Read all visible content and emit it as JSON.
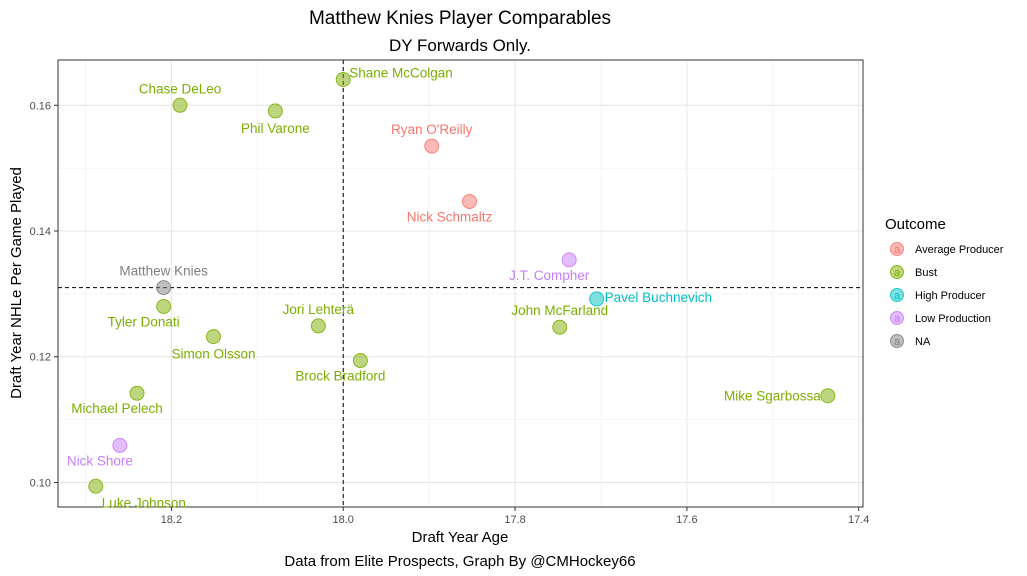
{
  "chart_data": {
    "type": "scatter",
    "title": "Matthew Knies Player Comparables",
    "subtitle": "DY Forwards Only.",
    "xlabel": "Draft Year Age",
    "ylabel": "Draft Year NHLe Per Game Played",
    "caption": "Data from Elite Prospects, Graph By @CMHockey66",
    "x_reversed": true,
    "xlim": [
      18.332,
      17.395
    ],
    "ylim": [
      0.0961,
      0.1672
    ],
    "x_ticks": [
      {
        "value": 18.2,
        "label": "18.2"
      },
      {
        "value": 18.0,
        "label": "18.0"
      },
      {
        "value": 17.8,
        "label": "17.8"
      },
      {
        "value": 17.6,
        "label": "17.6"
      },
      {
        "value": 17.4,
        "label": "17.4"
      }
    ],
    "y_ticks": [
      {
        "value": 0.1,
        "label": "0.10"
      },
      {
        "value": 0.12,
        "label": "0.12"
      },
      {
        "value": 0.14,
        "label": "0.14"
      },
      {
        "value": 0.16,
        "label": "0.16"
      }
    ],
    "vline": 18.0,
    "hline": 0.131,
    "grid": true,
    "legend": {
      "title": "Outcome",
      "position": "right",
      "glyph": "a",
      "entries": [
        {
          "name": "Average Producer",
          "color": "#F8766D"
        },
        {
          "name": "Bust",
          "color": "#7CAE00"
        },
        {
          "name": "High Producer",
          "color": "#00BFC4"
        },
        {
          "name": "Low Production",
          "color": "#C77CFF"
        },
        {
          "name": "NA",
          "color": "#7F7F7F"
        }
      ]
    },
    "points": [
      {
        "name": "Shane McColgan",
        "x": 18.0,
        "y": 0.1641,
        "outcome": "Bust",
        "label_pos": "right-up"
      },
      {
        "name": "Chase DeLeo",
        "x": 18.19,
        "y": 0.16,
        "outcome": "Bust",
        "label_pos": "above"
      },
      {
        "name": "Phil Varone",
        "x": 18.079,
        "y": 0.1591,
        "outcome": "Bust",
        "label_pos": "below"
      },
      {
        "name": "Ryan O'Reilly",
        "x": 17.897,
        "y": 0.1535,
        "outcome": "Average Producer",
        "label_pos": "above"
      },
      {
        "name": "Nick Schmaltz",
        "x": 17.853,
        "y": 0.1447,
        "outcome": "Average Producer",
        "label_pos": "below-left"
      },
      {
        "name": "J.T. Compher",
        "x": 17.737,
        "y": 0.1354,
        "outcome": "Low Production",
        "label_pos": "below-left"
      },
      {
        "name": "Matthew Knies",
        "x": 18.209,
        "y": 0.131,
        "outcome": "NA",
        "label_pos": "above"
      },
      {
        "name": "Pavel Buchnevich",
        "x": 17.705,
        "y": 0.1292,
        "outcome": "High Producer",
        "label_pos": "right"
      },
      {
        "name": "Tyler Donati",
        "x": 18.209,
        "y": 0.128,
        "outcome": "Bust",
        "label_pos": "below-left"
      },
      {
        "name": "Jori Lehterä",
        "x": 18.029,
        "y": 0.1249,
        "outcome": "Bust",
        "label_pos": "above"
      },
      {
        "name": "John McFarland",
        "x": 17.748,
        "y": 0.1247,
        "outcome": "Bust",
        "label_pos": "above"
      },
      {
        "name": "Simon Olsson",
        "x": 18.151,
        "y": 0.1232,
        "outcome": "Bust",
        "label_pos": "below"
      },
      {
        "name": "Brock Bradford",
        "x": 17.98,
        "y": 0.1194,
        "outcome": "Bust",
        "label_pos": "below-left"
      },
      {
        "name": "Mike Sgarbossa",
        "x": 17.436,
        "y": 0.1138,
        "outcome": "Bust",
        "label_pos": "left"
      },
      {
        "name": "Michael Pelech",
        "x": 18.24,
        "y": 0.1142,
        "outcome": "Bust",
        "label_pos": "below-left"
      },
      {
        "name": "Nick Shore",
        "x": 18.26,
        "y": 0.1059,
        "outcome": "Low Production",
        "label_pos": "below-left"
      },
      {
        "name": "Luke Johnson",
        "x": 18.288,
        "y": 0.0994,
        "outcome": "Bust",
        "label_pos": "below-right"
      }
    ]
  }
}
